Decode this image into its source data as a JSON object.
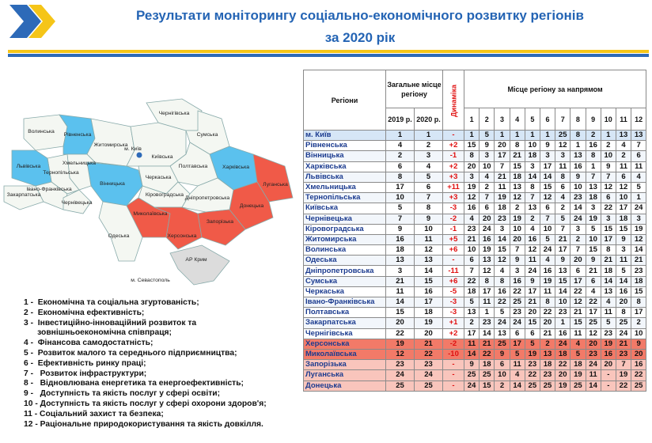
{
  "header": {
    "title_line1": "Результати моніторингу соціально-економічного розвитку регіонів",
    "title_line2": "за 2020 рік"
  },
  "map": {
    "labels": [
      "Волинська",
      "Рівненська",
      "Житомирська",
      "Київська",
      "Чернігівська",
      "Сумська",
      "Харківська",
      "Луганська",
      "Донецька",
      "Полтавська",
      "Черкаська",
      "Вінницька",
      "Хмельницька",
      "Тернопільська",
      "Львівська",
      "Закарпатська",
      "Івано-Франківська",
      "Чернівецька",
      "Кіровоградська",
      "Дніпропетровська",
      "Миколаївська",
      "Одеська",
      "Херсонська",
      "Запорізька",
      "АР Крим",
      "м. Київ",
      "м. Севастополь"
    ]
  },
  "legend": [
    "1 -  Економічна та соціальна згуртованість;",
    "2 -  Економічна ефективність;",
    "3 -  Інвестиційно-інноваційний розвиток та",
    "      зовнішньоекономічна співпраця;",
    "4 -  Фінансова самодостатність;",
    "5 -  Розвиток малого та середнього підприємництва;",
    "6 -  Ефективність ринку праці;",
    "7 -   Розвиток інфраструктури;",
    "8 -   Відновлювана енергетика та енергоефективність;",
    "9 -   Доступність та якість послуг у сфері освіти;",
    "10 - Доступність та якість послуг у сфері охорони здоров'я;",
    "11 - Соціальний захист та безпека;",
    "12 - Раціональне природокористування та якість довкілля."
  ],
  "table": {
    "header": {
      "regions": "Регіони",
      "overall": "Загальне місце регіону",
      "y2019": "2019 р.",
      "y2020": "2020 р.",
      "dynamics": "Динаміка",
      "directions": "Місце регіону за напрямом",
      "numbers": [
        "1",
        "2",
        "3",
        "4",
        "5",
        "6",
        "7",
        "8",
        "9",
        "10",
        "11",
        "12"
      ]
    },
    "rows": [
      [
        "м. Київ",
        "1",
        "1",
        "-",
        "1",
        "5",
        "1",
        "1",
        "1",
        "1",
        "25",
        "8",
        "2",
        "1",
        "13",
        "13"
      ],
      [
        "Рівненська",
        "4",
        "2",
        "+2",
        "15",
        "9",
        "20",
        "8",
        "10",
        "9",
        "12",
        "1",
        "16",
        "2",
        "4",
        "7"
      ],
      [
        "Вінницька",
        "2",
        "3",
        "-1",
        "8",
        "3",
        "17",
        "21",
        "18",
        "3",
        "3",
        "13",
        "8",
        "10",
        "2",
        "6"
      ],
      [
        "Харківська",
        "6",
        "4",
        "+2",
        "20",
        "10",
        "7",
        "15",
        "3",
        "17",
        "11",
        "16",
        "1",
        "9",
        "11",
        "11"
      ],
      [
        "Львівська",
        "8",
        "5",
        "+3",
        "3",
        "4",
        "21",
        "18",
        "14",
        "14",
        "8",
        "9",
        "7",
        "7",
        "6",
        "4"
      ],
      [
        "Хмельницька",
        "17",
        "6",
        "+11",
        "19",
        "2",
        "11",
        "13",
        "8",
        "15",
        "6",
        "10",
        "13",
        "12",
        "12",
        "5"
      ],
      [
        "Тернопільська",
        "10",
        "7",
        "+3",
        "12",
        "7",
        "19",
        "12",
        "7",
        "12",
        "4",
        "23",
        "18",
        "6",
        "10",
        "1"
      ],
      [
        "Київська",
        "5",
        "8",
        "-3",
        "16",
        "6",
        "18",
        "2",
        "13",
        "6",
        "2",
        "14",
        "3",
        "22",
        "17",
        "24"
      ],
      [
        "Чернівецька",
        "7",
        "9",
        "-2",
        "4",
        "20",
        "23",
        "19",
        "2",
        "7",
        "5",
        "24",
        "19",
        "3",
        "18",
        "3"
      ],
      [
        "Кіровоградська",
        "9",
        "10",
        "-1",
        "23",
        "24",
        "3",
        "10",
        "4",
        "10",
        "7",
        "3",
        "5",
        "15",
        "15",
        "19"
      ],
      [
        "Житомирська",
        "16",
        "11",
        "+5",
        "21",
        "16",
        "14",
        "20",
        "16",
        "5",
        "21",
        "2",
        "10",
        "17",
        "9",
        "12"
      ],
      [
        "Волинська",
        "18",
        "12",
        "+6",
        "10",
        "19",
        "15",
        "7",
        "12",
        "24",
        "17",
        "7",
        "15",
        "8",
        "3",
        "14"
      ],
      [
        "Одеська",
        "13",
        "13",
        "-",
        "6",
        "13",
        "12",
        "9",
        "11",
        "4",
        "9",
        "20",
        "9",
        "21",
        "11",
        "21"
      ],
      [
        "Дніпропетровська",
        "3",
        "14",
        "-11",
        "7",
        "12",
        "4",
        "3",
        "24",
        "16",
        "13",
        "6",
        "21",
        "18",
        "5",
        "23"
      ],
      [
        "Сумська",
        "21",
        "15",
        "+6",
        "22",
        "8",
        "8",
        "16",
        "9",
        "19",
        "15",
        "17",
        "6",
        "14",
        "14",
        "18"
      ],
      [
        "Черкаська",
        "11",
        "16",
        "-5",
        "18",
        "17",
        "16",
        "22",
        "17",
        "11",
        "14",
        "22",
        "4",
        "13",
        "16",
        "15"
      ],
      [
        "Івано-Франківська",
        "14",
        "17",
        "-3",
        "5",
        "11",
        "22",
        "25",
        "21",
        "8",
        "10",
        "12",
        "22",
        "4",
        "20",
        "8"
      ],
      [
        "Полтавська",
        "15",
        "18",
        "-3",
        "13",
        "1",
        "5",
        "23",
        "20",
        "22",
        "23",
        "21",
        "17",
        "11",
        "8",
        "17"
      ],
      [
        "Закарпатська",
        "20",
        "19",
        "+1",
        "2",
        "23",
        "24",
        "24",
        "15",
        "20",
        "1",
        "15",
        "25",
        "5",
        "25",
        "2"
      ],
      [
        "Чернігівська",
        "22",
        "20",
        "+2",
        "17",
        "14",
        "13",
        "6",
        "6",
        "21",
        "16",
        "11",
        "12",
        "23",
        "24",
        "10"
      ],
      [
        "Херсонська",
        "19",
        "21",
        "-2",
        "11",
        "21",
        "25",
        "17",
        "5",
        "2",
        "24",
        "4",
        "20",
        "19",
        "21",
        "9"
      ],
      [
        "Миколаївська",
        "12",
        "22",
        "-10",
        "14",
        "22",
        "9",
        "5",
        "19",
        "13",
        "18",
        "5",
        "23",
        "16",
        "23",
        "20"
      ],
      [
        "Запорізька",
        "23",
        "23",
        "-",
        "9",
        "18",
        "6",
        "11",
        "23",
        "18",
        "22",
        "18",
        "24",
        "20",
        "7",
        "16"
      ],
      [
        "Луганська",
        "24",
        "24",
        "-",
        "25",
        "25",
        "10",
        "4",
        "22",
        "23",
        "20",
        "19",
        "11",
        "-",
        "19",
        "22"
      ],
      [
        "Донецька",
        "25",
        "25",
        "-",
        "24",
        "15",
        "2",
        "14",
        "25",
        "25",
        "19",
        "25",
        "14",
        "-",
        "22",
        "25"
      ]
    ]
  }
}
